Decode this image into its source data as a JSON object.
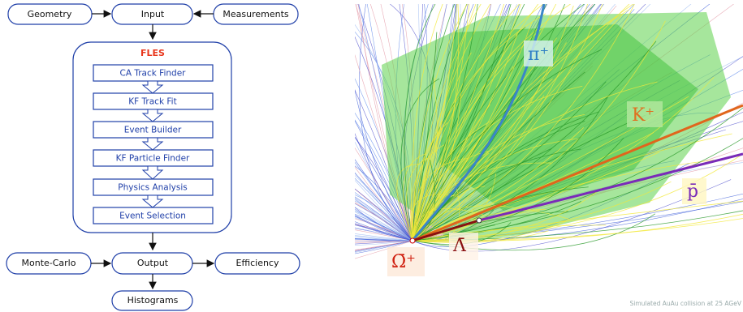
{
  "flow": {
    "geometry": "Geometry",
    "input": "Input",
    "measurements": "Measurements",
    "fles": {
      "title": "FLES",
      "steps": [
        "CA Track Finder",
        "KF Track Fit",
        "Event Builder",
        "KF Particle Finder",
        "Physics Analysis",
        "Event Selection"
      ]
    },
    "monte_carlo": "Monte-Carlo",
    "output": "Output",
    "efficiency": "Efficiency",
    "histograms": "Histograms"
  },
  "event_display": {
    "labels": {
      "pion": "π⁺",
      "kaon": "K⁺",
      "antiproton": "p̄",
      "antilambda": "Λ̄",
      "antiomega": "Ω̄⁺"
    },
    "caption": "Simulated AuAu collision at 25 AGeV"
  }
}
